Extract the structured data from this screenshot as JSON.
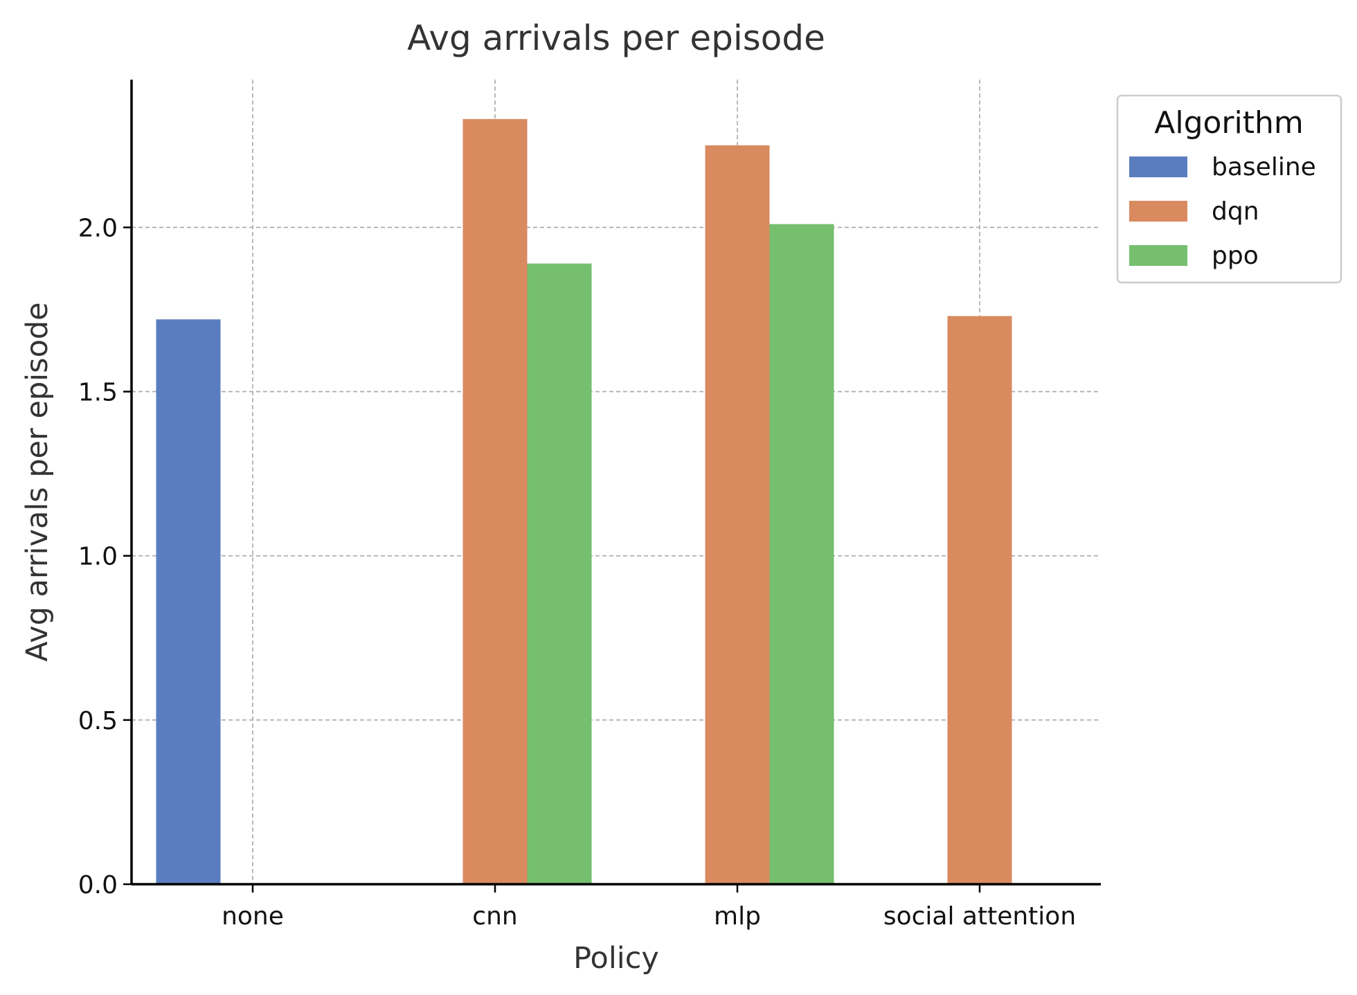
{
  "chart_data": {
    "type": "bar",
    "title": "Avg arrivals per episode",
    "xlabel": "Policy",
    "ylabel": "Avg arrivals per episode",
    "categories": [
      "none",
      "cnn",
      "mlp",
      "social attention"
    ],
    "ylim": [
      0,
      2.45
    ],
    "yticks": [
      "0.0",
      "0.5",
      "1.0",
      "1.5",
      "2.0"
    ],
    "ytick_values": [
      0,
      0.5,
      1.0,
      1.5,
      2.0
    ],
    "grid": true,
    "legend": {
      "title": "Algorithm",
      "placement": "outside-top-right"
    },
    "series": [
      {
        "name": "baseline",
        "color": "#5b7dbf",
        "values": [
          1.72,
          null,
          null,
          null
        ]
      },
      {
        "name": "dqn",
        "color": "#d98a5f",
        "values": [
          null,
          2.33,
          2.25,
          1.73
        ]
      },
      {
        "name": "ppo",
        "color": "#75bf6f",
        "values": [
          null,
          1.89,
          2.01,
          null
        ]
      }
    ]
  }
}
